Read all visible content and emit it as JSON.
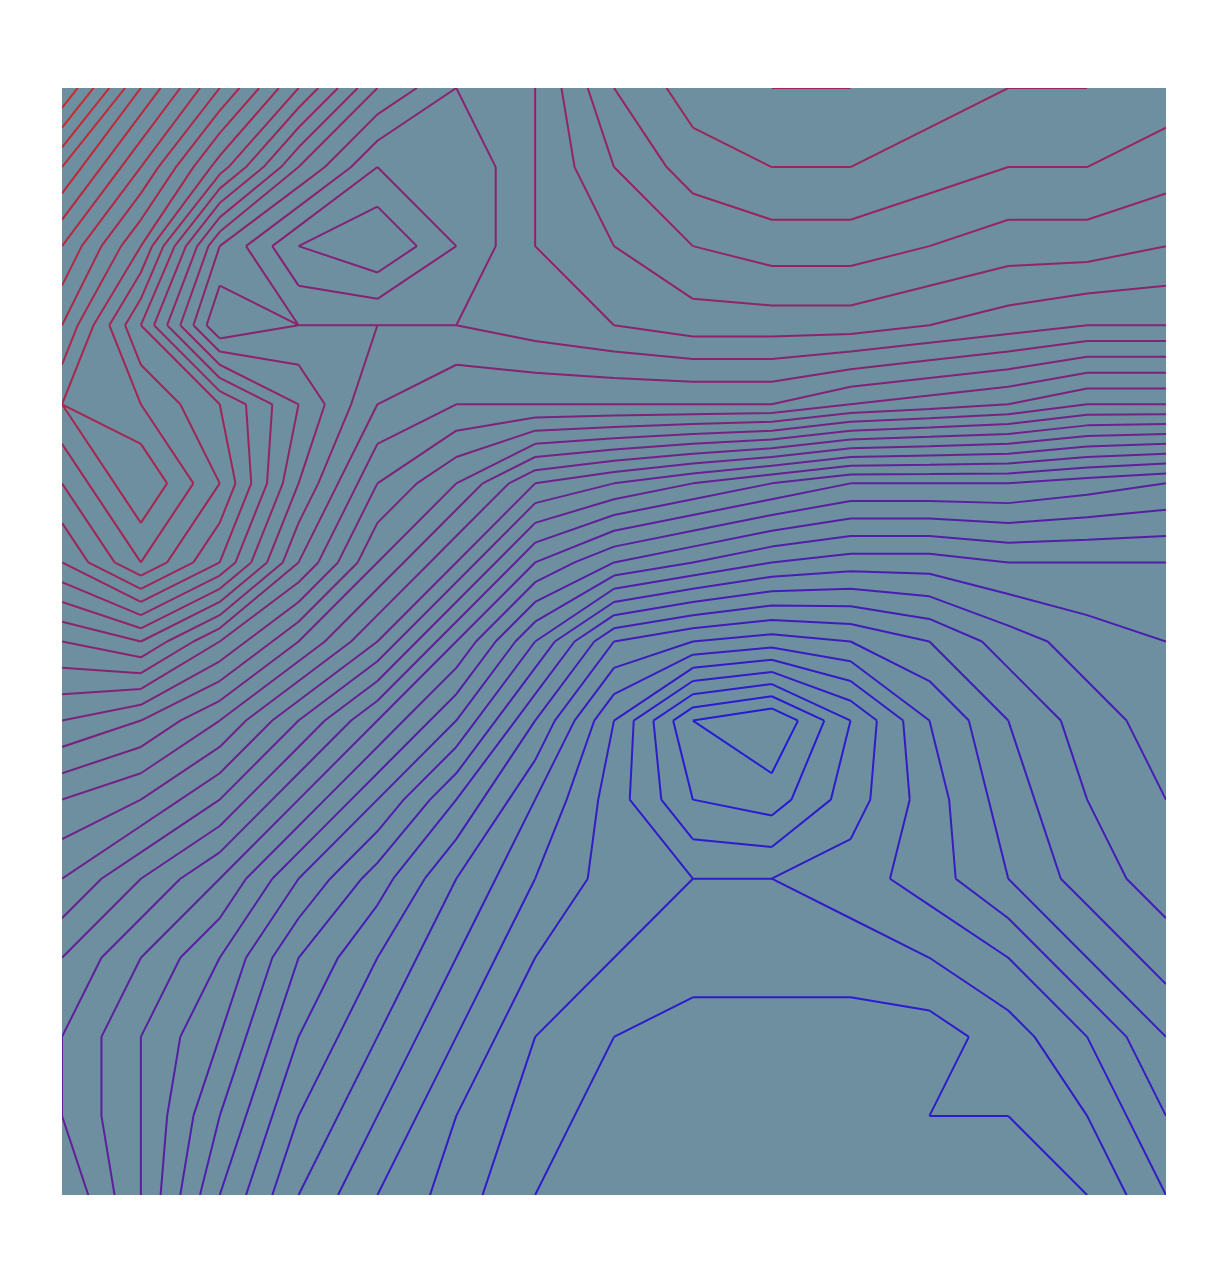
{
  "chart_data": {
    "type": "contour",
    "x": [
      0,
      1,
      2,
      3,
      4,
      5,
      6,
      7,
      8,
      9,
      10,
      11,
      12,
      13,
      14
    ],
    "y": [
      14,
      13,
      12,
      11,
      10,
      9,
      8,
      7,
      6,
      5,
      4,
      3,
      2,
      1,
      0
    ],
    "z": [
      [
        100,
        90,
        82,
        74,
        66,
        62,
        64,
        70,
        73,
        74,
        74,
        73,
        72,
        72,
        71
      ],
      [
        92,
        84,
        75,
        66,
        60,
        60,
        64,
        68,
        71,
        72,
        72,
        71,
        70,
        70,
        69
      ],
      [
        86,
        78,
        64,
        58,
        56,
        60,
        64,
        66,
        68,
        69,
        69,
        68,
        67,
        67,
        66
      ],
      [
        82,
        72,
        60,
        62,
        62,
        62,
        63,
        64,
        65,
        65,
        65,
        64,
        63,
        62,
        62
      ],
      [
        78,
        76,
        72,
        66,
        60,
        58,
        58,
        58,
        58,
        58,
        56,
        55,
        54,
        52,
        52
      ],
      [
        74,
        80,
        74,
        64,
        56,
        52,
        46,
        44,
        42,
        40,
        38,
        38,
        38,
        37,
        36
      ],
      [
        70,
        76,
        70,
        60,
        52,
        46,
        38,
        34,
        32,
        30,
        29,
        29,
        30,
        30,
        30
      ],
      [
        62,
        64,
        58,
        52,
        46,
        38,
        30,
        22,
        20,
        19,
        20,
        22,
        25,
        27,
        28
      ],
      [
        56,
        54,
        50,
        44,
        38,
        32,
        24,
        16,
        8,
        6,
        12,
        18,
        22,
        25,
        27
      ],
      [
        50,
        48,
        44,
        38,
        32,
        26,
        20,
        15,
        10,
        9,
        13,
        17,
        21,
        24,
        26
      ],
      [
        46,
        42,
        38,
        32,
        27,
        22,
        18,
        15,
        14,
        14,
        15,
        17,
        20,
        23,
        25
      ],
      [
        42,
        38,
        34,
        28,
        24,
        20,
        16,
        14,
        13,
        13,
        13,
        14,
        16,
        20,
        23
      ],
      [
        40,
        36,
        32,
        26,
        22,
        18,
        14,
        12,
        11,
        11,
        11,
        11,
        13,
        16,
        20
      ],
      [
        40,
        36,
        30,
        24,
        20,
        16,
        13,
        11,
        10,
        10,
        11,
        12,
        12,
        14,
        18
      ],
      [
        42,
        36,
        28,
        22,
        18,
        15,
        12,
        10,
        10,
        10,
        10,
        11,
        11,
        12,
        16
      ]
    ],
    "levels": [
      2,
      4,
      6,
      8,
      10,
      12,
      14,
      16,
      18,
      20,
      22,
      24,
      26,
      28,
      30,
      32,
      34,
      36,
      38,
      40,
      42,
      44,
      46,
      48,
      50,
      52,
      54,
      56,
      58,
      60,
      62,
      64,
      66,
      68,
      70,
      72,
      74,
      76,
      78,
      80,
      82,
      84,
      86,
      88,
      90,
      92,
      94,
      96,
      98
    ],
    "colors": [
      "#1a1ae0",
      "#cc2a2a"
    ],
    "xlim": [
      0,
      14
    ],
    "ylim": [
      0,
      14
    ],
    "tick_labels": false,
    "grid": false
  }
}
